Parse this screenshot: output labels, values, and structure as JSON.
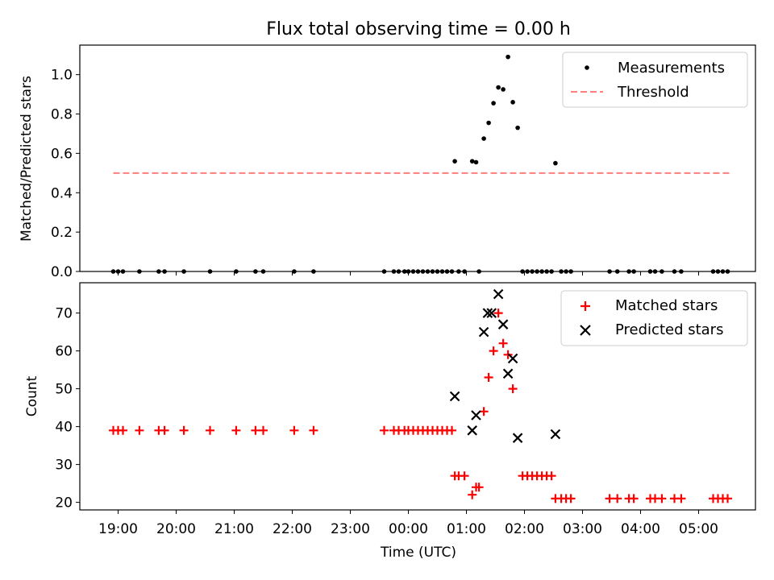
{
  "title": "Flux total observing time = 0.00 h",
  "xlabel": "Time (UTC)",
  "chart_data": [
    {
      "type": "scatter",
      "ylabel": "Matched/Predicted stars",
      "ylim": [
        0,
        1.15
      ],
      "yticks": [
        "0.0",
        "0.2",
        "0.4",
        "0.6",
        "0.8",
        "1.0"
      ],
      "legend_position": "upper-right",
      "series": [
        {
          "name": "Measurements",
          "kind": "points",
          "color": "#000000",
          "points": [
            {
              "x": "18:55",
              "y": 0
            },
            {
              "x": "19:00",
              "y": 0
            },
            {
              "x": "19:05",
              "y": 0
            },
            {
              "x": "19:22",
              "y": 0
            },
            {
              "x": "19:42",
              "y": 0
            },
            {
              "x": "19:48",
              "y": 0
            },
            {
              "x": "20:08",
              "y": 0
            },
            {
              "x": "20:35",
              "y": 0
            },
            {
              "x": "21:02",
              "y": 0
            },
            {
              "x": "21:22",
              "y": 0
            },
            {
              "x": "21:30",
              "y": 0
            },
            {
              "x": "22:02",
              "y": 0
            },
            {
              "x": "22:22",
              "y": 0
            },
            {
              "x": "23:35",
              "y": 0
            },
            {
              "x": "23:45",
              "y": 0
            },
            {
              "x": "23:50",
              "y": 0
            },
            {
              "x": "23:56",
              "y": 0
            },
            {
              "x": "00:00",
              "y": 0
            },
            {
              "x": "00:05",
              "y": 0
            },
            {
              "x": "00:10",
              "y": 0
            },
            {
              "x": "00:15",
              "y": 0
            },
            {
              "x": "00:20",
              "y": 0
            },
            {
              "x": "00:25",
              "y": 0
            },
            {
              "x": "00:30",
              "y": 0
            },
            {
              "x": "00:35",
              "y": 0
            },
            {
              "x": "00:40",
              "y": 0
            },
            {
              "x": "00:45",
              "y": 0
            },
            {
              "x": "00:48",
              "y": 0.56
            },
            {
              "x": "00:52",
              "y": 0
            },
            {
              "x": "00:58",
              "y": 0
            },
            {
              "x": "01:06",
              "y": 0.56
            },
            {
              "x": "01:10",
              "y": 0.555
            },
            {
              "x": "01:13",
              "y": 0
            },
            {
              "x": "01:18",
              "y": 0.675
            },
            {
              "x": "01:23",
              "y": 0.755
            },
            {
              "x": "01:28",
              "y": 0.855
            },
            {
              "x": "01:33",
              "y": 0.935
            },
            {
              "x": "01:38",
              "y": 0.925
            },
            {
              "x": "01:43",
              "y": 1.09
            },
            {
              "x": "01:48",
              "y": 0.86
            },
            {
              "x": "01:53",
              "y": 0.73
            },
            {
              "x": "01:58",
              "y": 0
            },
            {
              "x": "02:03",
              "y": 0
            },
            {
              "x": "02:08",
              "y": 0
            },
            {
              "x": "02:13",
              "y": 0
            },
            {
              "x": "02:18",
              "y": 0
            },
            {
              "x": "02:23",
              "y": 0
            },
            {
              "x": "02:28",
              "y": 0
            },
            {
              "x": "02:32",
              "y": 0.55
            },
            {
              "x": "02:38",
              "y": 0
            },
            {
              "x": "02:43",
              "y": 0
            },
            {
              "x": "02:48",
              "y": 0
            },
            {
              "x": "03:28",
              "y": 0
            },
            {
              "x": "03:36",
              "y": 0
            },
            {
              "x": "03:48",
              "y": 0
            },
            {
              "x": "03:53",
              "y": 0
            },
            {
              "x": "04:10",
              "y": 0
            },
            {
              "x": "04:15",
              "y": 0
            },
            {
              "x": "04:22",
              "y": 0
            },
            {
              "x": "04:35",
              "y": 0
            },
            {
              "x": "04:42",
              "y": 0
            },
            {
              "x": "05:15",
              "y": 0
            },
            {
              "x": "05:20",
              "y": 0
            },
            {
              "x": "05:25",
              "y": 0
            },
            {
              "x": "05:30",
              "y": 0
            }
          ]
        },
        {
          "name": "Threshold",
          "kind": "dashed-line",
          "color": "#ff7f7f",
          "points": [
            {
              "x": "18:55",
              "y": 0.5
            },
            {
              "x": "05:32",
              "y": 0.5
            }
          ]
        }
      ]
    },
    {
      "type": "scatter",
      "ylabel": "Count",
      "ylim": [
        18,
        78
      ],
      "yticks": [
        "20",
        "30",
        "40",
        "50",
        "60",
        "70"
      ],
      "legend_position": "upper-right",
      "xticks": [
        "19:00",
        "20:00",
        "21:00",
        "22:00",
        "23:00",
        "00:00",
        "01:00",
        "02:00",
        "03:00",
        "04:00",
        "05:00"
      ],
      "series": [
        {
          "name": "Matched stars",
          "kind": "plus",
          "color": "#ff0000",
          "points": [
            {
              "x": "18:55",
              "y": 39
            },
            {
              "x": "19:00",
              "y": 39
            },
            {
              "x": "19:05",
              "y": 39
            },
            {
              "x": "19:22",
              "y": 39
            },
            {
              "x": "19:42",
              "y": 39
            },
            {
              "x": "19:48",
              "y": 39
            },
            {
              "x": "20:08",
              "y": 39
            },
            {
              "x": "20:35",
              "y": 39
            },
            {
              "x": "21:02",
              "y": 39
            },
            {
              "x": "21:22",
              "y": 39
            },
            {
              "x": "21:30",
              "y": 39
            },
            {
              "x": "22:02",
              "y": 39
            },
            {
              "x": "22:22",
              "y": 39
            },
            {
              "x": "23:35",
              "y": 39
            },
            {
              "x": "23:45",
              "y": 39
            },
            {
              "x": "23:50",
              "y": 39
            },
            {
              "x": "23:56",
              "y": 39
            },
            {
              "x": "00:00",
              "y": 39
            },
            {
              "x": "00:05",
              "y": 39
            },
            {
              "x": "00:10",
              "y": 39
            },
            {
              "x": "00:15",
              "y": 39
            },
            {
              "x": "00:20",
              "y": 39
            },
            {
              "x": "00:25",
              "y": 39
            },
            {
              "x": "00:30",
              "y": 39
            },
            {
              "x": "00:35",
              "y": 39
            },
            {
              "x": "00:40",
              "y": 39
            },
            {
              "x": "00:45",
              "y": 39
            },
            {
              "x": "00:48",
              "y": 27
            },
            {
              "x": "00:52",
              "y": 27
            },
            {
              "x": "00:58",
              "y": 27
            },
            {
              "x": "01:06",
              "y": 22
            },
            {
              "x": "01:10",
              "y": 24
            },
            {
              "x": "01:13",
              "y": 24
            },
            {
              "x": "01:18",
              "y": 44
            },
            {
              "x": "01:23",
              "y": 53
            },
            {
              "x": "01:28",
              "y": 60
            },
            {
              "x": "01:33",
              "y": 70
            },
            {
              "x": "01:38",
              "y": 62
            },
            {
              "x": "01:43",
              "y": 59
            },
            {
              "x": "01:48",
              "y": 50
            },
            {
              "x": "01:58",
              "y": 27
            },
            {
              "x": "02:03",
              "y": 27
            },
            {
              "x": "02:08",
              "y": 27
            },
            {
              "x": "02:13",
              "y": 27
            },
            {
              "x": "02:18",
              "y": 27
            },
            {
              "x": "02:23",
              "y": 27
            },
            {
              "x": "02:28",
              "y": 27
            },
            {
              "x": "02:32",
              "y": 21
            },
            {
              "x": "02:38",
              "y": 21
            },
            {
              "x": "02:43",
              "y": 21
            },
            {
              "x": "02:48",
              "y": 21
            },
            {
              "x": "03:28",
              "y": 21
            },
            {
              "x": "03:36",
              "y": 21
            },
            {
              "x": "03:48",
              "y": 21
            },
            {
              "x": "03:53",
              "y": 21
            },
            {
              "x": "04:10",
              "y": 21
            },
            {
              "x": "04:15",
              "y": 21
            },
            {
              "x": "04:22",
              "y": 21
            },
            {
              "x": "04:35",
              "y": 21
            },
            {
              "x": "04:42",
              "y": 21
            },
            {
              "x": "05:15",
              "y": 21
            },
            {
              "x": "05:20",
              "y": 21
            },
            {
              "x": "05:25",
              "y": 21
            },
            {
              "x": "05:30",
              "y": 21
            }
          ]
        },
        {
          "name": "Predicted stars",
          "kind": "cross",
          "color": "#000000",
          "points": [
            {
              "x": "00:48",
              "y": 48
            },
            {
              "x": "01:06",
              "y": 39
            },
            {
              "x": "01:10",
              "y": 43
            },
            {
              "x": "01:18",
              "y": 65
            },
            {
              "x": "01:22",
              "y": 70
            },
            {
              "x": "01:26",
              "y": 70
            },
            {
              "x": "01:33",
              "y": 75
            },
            {
              "x": "01:38",
              "y": 67
            },
            {
              "x": "01:43",
              "y": 54
            },
            {
              "x": "01:48",
              "y": 58
            },
            {
              "x": "01:53",
              "y": 37
            },
            {
              "x": "02:32",
              "y": 38
            }
          ]
        }
      ]
    }
  ]
}
